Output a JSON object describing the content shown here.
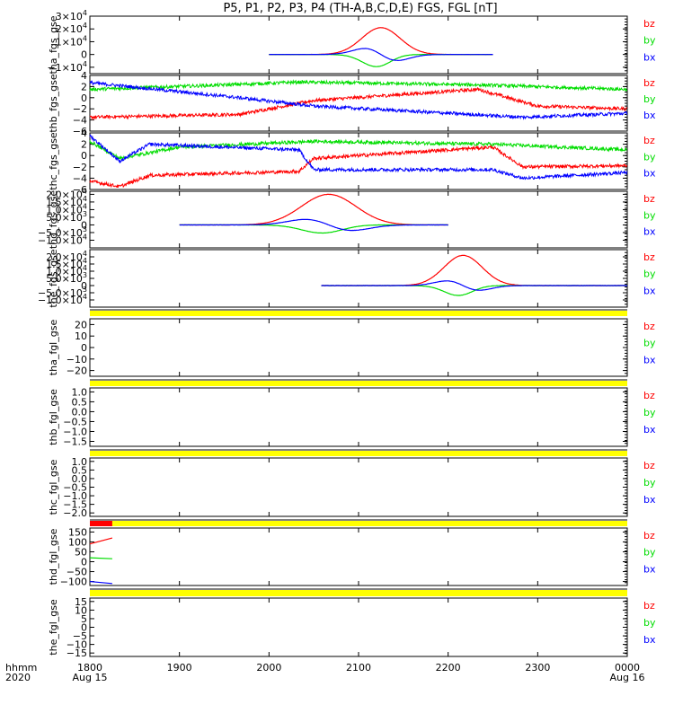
{
  "chart_data": {
    "title": "P5, P1, P2, P3, P4 (TH-A,B,C,D,E) FGS, FGL [nT]",
    "type": "line",
    "x_axis": {
      "ticks": [
        {
          "top": "1800",
          "bottom": "Aug 15",
          "t": 0
        },
        {
          "top": "1900",
          "bottom": "",
          "t": 60
        },
        {
          "top": "2000",
          "bottom": "",
          "t": 120
        },
        {
          "top": "2100",
          "bottom": "",
          "t": 180
        },
        {
          "top": "2200",
          "bottom": "",
          "t": 240
        },
        {
          "top": "2300",
          "bottom": "",
          "t": 300
        },
        {
          "top": "0000",
          "bottom": "Aug 16",
          "t": 360
        }
      ],
      "range": [
        0,
        360
      ],
      "label_top": "hhmm",
      "label_bottom": "2020"
    },
    "series_colors": {
      "bz": "#ff0000",
      "by": "#00dd00",
      "bx": "#0000ff"
    },
    "legend": [
      "bz",
      "by",
      "bx"
    ],
    "panels": [
      {
        "ylabel": "tha_fgs_gse",
        "ylim": [
          -15000,
          30000
        ],
        "ticks": [
          {
            "v": 30000,
            "b": "3×10",
            "e": "4"
          },
          {
            "v": 20000,
            "b": "2×10",
            "e": "4"
          },
          {
            "v": 10000,
            "b": "1×10",
            "e": "4"
          },
          {
            "v": 0,
            "b": "0",
            "e": ""
          },
          {
            "v": -10000,
            "b": "−1×10",
            "e": "4"
          }
        ],
        "data_range": [
          120,
          270
        ],
        "pulse": {
          "center": 195,
          "bz": 21000,
          "by": -9000,
          "bx": 6500,
          "width": 14
        }
      },
      {
        "ylabel": "thb_fgs_gse",
        "ylim": [
          -6,
          4
        ],
        "ticks": [
          {
            "v": 4,
            "b": "4"
          },
          {
            "v": 2,
            "b": "2"
          },
          {
            "v": 0,
            "b": "0"
          },
          {
            "v": -2,
            "b": "−2"
          },
          {
            "v": -4,
            "b": "−4"
          },
          {
            "v": -6,
            "b": "−6"
          }
        ],
        "data_range": [
          0,
          360
        ],
        "levels": {
          "bz": [
            [
              0,
              -3.5
            ],
            [
              100,
              -3
            ],
            [
              150,
              -0.5
            ],
            [
              260,
              1.5
            ],
            [
              300,
              -1.5
            ],
            [
              360,
              -2
            ]
          ],
          "by": [
            [
              0,
              1.5
            ],
            [
              80,
              2.2
            ],
            [
              140,
              2.8
            ],
            [
              260,
              2.3
            ],
            [
              360,
              1.5
            ]
          ],
          "bx": [
            [
              0,
              2.7
            ],
            [
              100,
              0
            ],
            [
              150,
              -1.5
            ],
            [
              290,
              -3.5
            ],
            [
              360,
              -2.8
            ]
          ]
        }
      },
      {
        "ylabel": "thc_fgs_gse",
        "ylim": [
          -6,
          4
        ],
        "ticks": [
          {
            "v": 4,
            "b": "4"
          },
          {
            "v": 2,
            "b": "2"
          },
          {
            "v": 0,
            "b": "0"
          },
          {
            "v": -2,
            "b": "−2"
          },
          {
            "v": -4,
            "b": "−4"
          },
          {
            "v": -6,
            "b": "−6"
          }
        ],
        "data_range": [
          0,
          360
        ],
        "levels": {
          "bz": [
            [
              0,
              -4.5
            ],
            [
              20,
              -5.5
            ],
            [
              40,
              -3.5
            ],
            [
              140,
              -2.8
            ],
            [
              150,
              -0.5
            ],
            [
              270,
              1.5
            ],
            [
              290,
              -2
            ],
            [
              360,
              -1.8
            ]
          ],
          "by": [
            [
              0,
              2.5
            ],
            [
              20,
              -0.5
            ],
            [
              60,
              1.5
            ],
            [
              150,
              2.5
            ],
            [
              270,
              2
            ],
            [
              360,
              1
            ]
          ],
          "bx": [
            [
              0,
              3.5
            ],
            [
              20,
              -1
            ],
            [
              40,
              2
            ],
            [
              140,
              1
            ],
            [
              150,
              -2.5
            ],
            [
              270,
              -2.5
            ],
            [
              290,
              -4
            ],
            [
              360,
              -3
            ]
          ]
        }
      },
      {
        "ylabel": "thd_fgs_gse",
        "ylim": [
          -15000,
          22000
        ],
        "ticks": [
          {
            "v": 20000,
            "b": "2.0×10",
            "e": "4"
          },
          {
            "v": 15000,
            "b": "1.5×10",
            "e": "4"
          },
          {
            "v": 10000,
            "b": "1.0×10",
            "e": "4"
          },
          {
            "v": 5000,
            "b": "5.0×10",
            "e": "3"
          },
          {
            "v": 0,
            "b": "0",
            "e": ""
          },
          {
            "v": -5000,
            "b": "−5.0×10",
            "e": "3"
          },
          {
            "v": -10000,
            "b": "−1.0×10",
            "e": "4"
          }
        ],
        "data_range": [
          60,
          240
        ],
        "pulse": {
          "center": 160,
          "bz": 20000,
          "by": -5000,
          "bx": 5000,
          "width": 20
        }
      },
      {
        "ylabel": "the_fgs_gse",
        "ylim": [
          -15000,
          25000
        ],
        "ticks": [
          {
            "v": 20000,
            "b": "2.0×10",
            "e": "4"
          },
          {
            "v": 15000,
            "b": "1.5×10",
            "e": "4"
          },
          {
            "v": 10000,
            "b": "1.0×10",
            "e": "4"
          },
          {
            "v": 5000,
            "b": "5.0×10",
            "e": "3"
          },
          {
            "v": 0,
            "b": "0",
            "e": ""
          },
          {
            "v": -5000,
            "b": "−5.0×10",
            "e": "3"
          },
          {
            "v": -10000,
            "b": "−1.0×10",
            "e": "4"
          }
        ],
        "data_range": [
          155,
          360
        ],
        "pulse": {
          "center": 250,
          "bz": 21000,
          "by": -6500,
          "bx": 4500,
          "width": 14
        }
      },
      {
        "ylabel": "tha_fgl_gse",
        "ylim": [
          -25,
          25
        ],
        "ticks": [
          {
            "v": 20,
            "b": "20"
          },
          {
            "v": 10,
            "b": "10"
          },
          {
            "v": 0,
            "b": "0"
          },
          {
            "v": -10,
            "b": "−10"
          },
          {
            "v": -20,
            "b": "−20"
          }
        ]
      },
      {
        "ylabel": "thb_fgl_gse",
        "ylim": [
          -1.75,
          1.2
        ],
        "ticks": [
          {
            "v": 1.0,
            "b": "1.0"
          },
          {
            "v": 0.5,
            "b": "0.5"
          },
          {
            "v": 0.0,
            "b": "0.0"
          },
          {
            "v": -0.5,
            "b": "−0.5"
          },
          {
            "v": -1.0,
            "b": "−1.0"
          },
          {
            "v": -1.5,
            "b": "−1.5"
          }
        ]
      },
      {
        "ylabel": "thc_fgl_gse",
        "ylim": [
          -2.2,
          1.2
        ],
        "ticks": [
          {
            "v": 1.0,
            "b": "1.0"
          },
          {
            "v": 0.5,
            "b": "0.5"
          },
          {
            "v": 0.0,
            "b": "0.0"
          },
          {
            "v": -0.5,
            "b": "−0.5"
          },
          {
            "v": -1.0,
            "b": "−1.0"
          },
          {
            "v": -1.5,
            "b": "−1.5"
          },
          {
            "v": -2.0,
            "b": "−2.0"
          }
        ]
      },
      {
        "ylabel": "thd_fgl_gse",
        "ylim": [
          -120,
          170
        ],
        "ticks": [
          {
            "v": 150,
            "b": "150"
          },
          {
            "v": 100,
            "b": "100"
          },
          {
            "v": 50,
            "b": "50"
          },
          {
            "v": 0,
            "b": "0"
          },
          {
            "v": -50,
            "b": "−50"
          },
          {
            "v": -100,
            "b": "−100"
          }
        ],
        "short": {
          "bz": [
            [
              0,
              90
            ],
            [
              15,
              120
            ]
          ],
          "by": [
            [
              0,
              20
            ],
            [
              15,
              15
            ]
          ],
          "bx": [
            [
              0,
              -100
            ],
            [
              15,
              -110
            ]
          ]
        }
      },
      {
        "ylabel": "the_fgl_gse",
        "ylim": [
          -17,
          17
        ],
        "ticks": [
          {
            "v": 15,
            "b": "15"
          },
          {
            "v": 10,
            "b": "10"
          },
          {
            "v": 5,
            "b": "5"
          },
          {
            "v": 0,
            "b": "0"
          },
          {
            "v": -5,
            "b": "−5"
          },
          {
            "v": -10,
            "b": "−10"
          },
          {
            "v": -15,
            "b": "−15"
          }
        ]
      }
    ],
    "status_bars": [
      {
        "color": "#ffff00"
      },
      {
        "color": "#ffff00"
      },
      {
        "color": "#ffff00"
      },
      {
        "color": "#ffff00",
        "red_segment": [
          0,
          15
        ]
      },
      {
        "color": "#ffff00"
      }
    ]
  }
}
